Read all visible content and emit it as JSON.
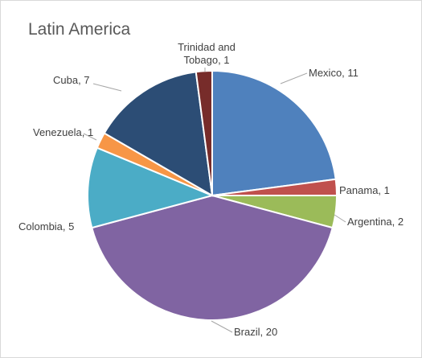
{
  "chart_data": {
    "type": "pie",
    "title": "Latin America",
    "categories": [
      "Mexico",
      "Panama",
      "Argentina",
      "Brazil",
      "Colombia",
      "Venezuela",
      "Cuba",
      "Trinidad and Tobago"
    ],
    "values": [
      11,
      1,
      2,
      20,
      5,
      1,
      7,
      1
    ],
    "labels": [
      [
        "Mexico, 11"
      ],
      [
        "Panama, 1"
      ],
      [
        "Argentina, 2"
      ],
      [
        "Brazil, 20"
      ],
      [
        "Colombia, 5"
      ],
      [
        "Venezuela, 1"
      ],
      [
        "Cuba, 7"
      ],
      [
        "Trinidad and",
        "Tobago, 1"
      ]
    ],
    "colors": [
      "#4F81BD",
      "#C0504D",
      "#9BBB59",
      "#8064A2",
      "#4BACC6",
      "#F79646",
      "#2C4D75",
      "#772C2A"
    ],
    "start_angle_deg": 0,
    "direction": "clockwise",
    "legend": "none"
  }
}
